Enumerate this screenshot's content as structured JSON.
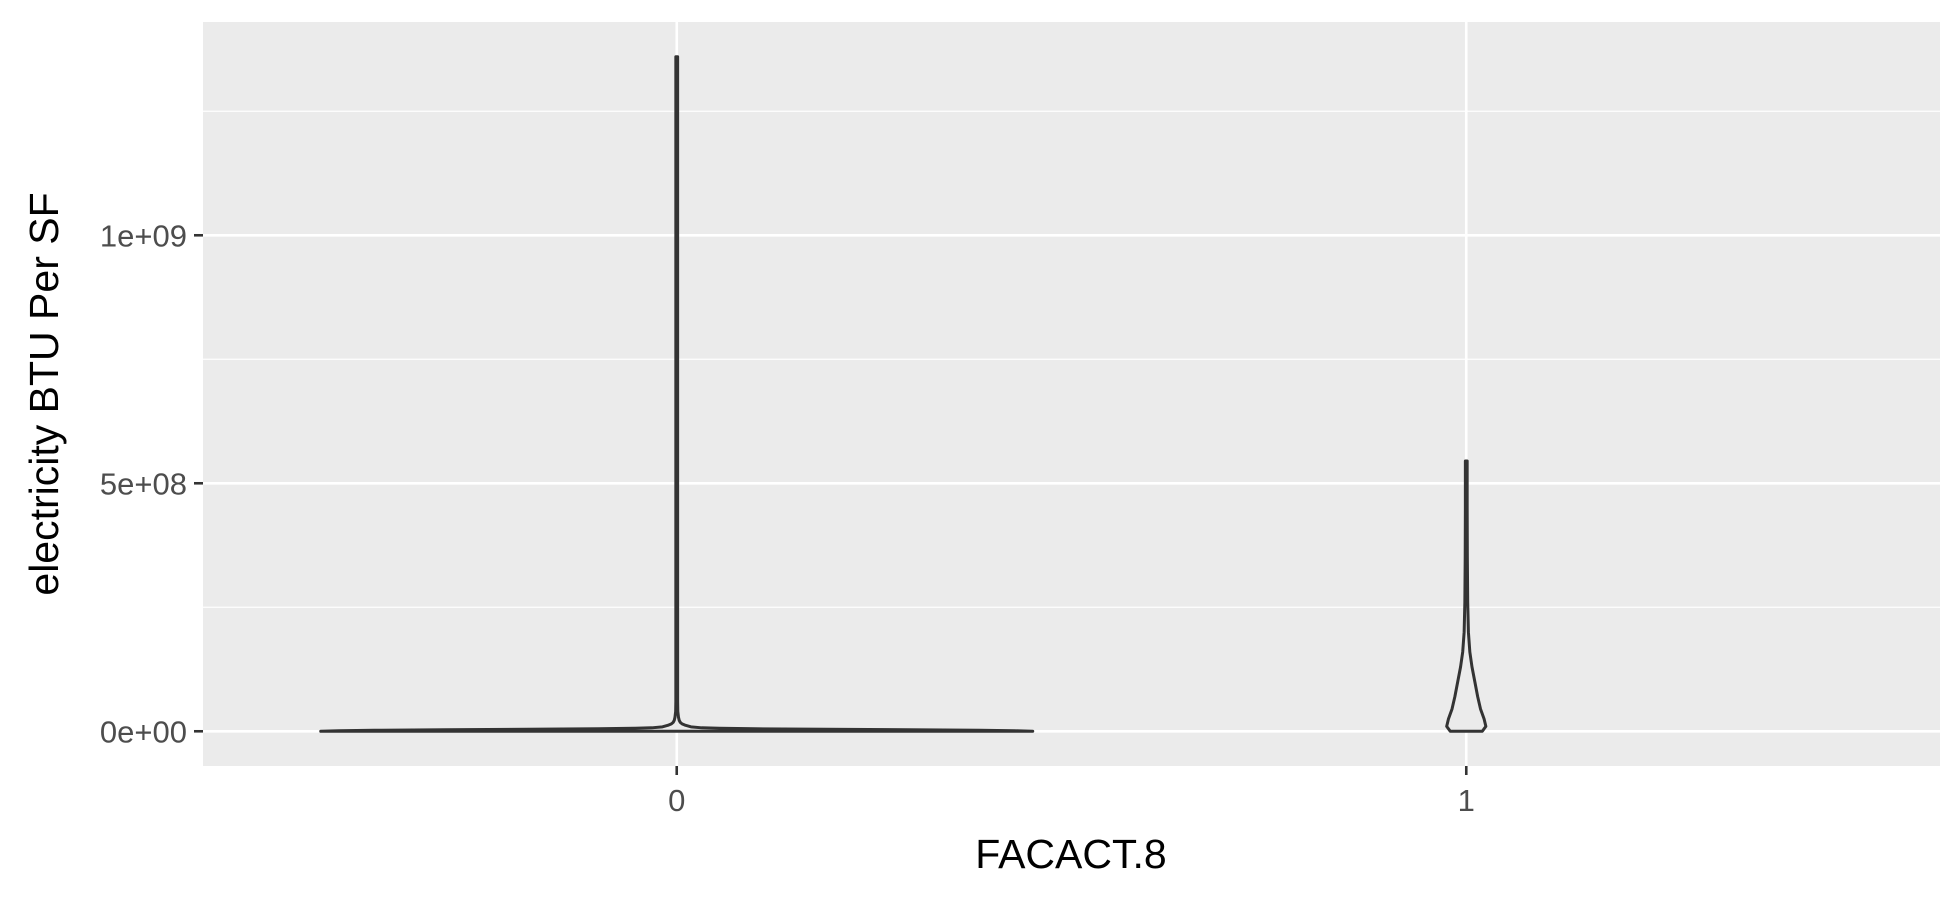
{
  "chart_data": {
    "type": "violin",
    "xlabel": "FACACT.8",
    "ylabel": "electricity BTU Per SF",
    "categories": [
      "0",
      "1"
    ],
    "y_ticks": [
      {
        "value": 0,
        "label": "0e+00"
      },
      {
        "value": 500000000,
        "label": "5e+08"
      },
      {
        "value": 1000000000,
        "label": "1e+09"
      }
    ],
    "ylim": [
      -70000000,
      1430000000
    ],
    "grid": true,
    "colors": {
      "panel": "#ebebeb",
      "grid": "#ffffff",
      "outline": "#333333"
    },
    "series": [
      {
        "category": "0",
        "y_min": 0,
        "y_max": 1360000000,
        "density_profile": [
          [
            0,
            1.0
          ],
          [
            1000000,
            0.95
          ],
          [
            2000000,
            0.85
          ],
          [
            3000000,
            0.65
          ],
          [
            4000000,
            0.42
          ],
          [
            5000000,
            0.22
          ],
          [
            6000000,
            0.12
          ],
          [
            7000000,
            0.07
          ],
          [
            9000000,
            0.04
          ],
          [
            12000000,
            0.025
          ],
          [
            15000000,
            0.015
          ],
          [
            18000000,
            0.01
          ],
          [
            22000000,
            0.007
          ],
          [
            28000000,
            0.005
          ],
          [
            40000000,
            0.003
          ],
          [
            60000000,
            0.002
          ],
          [
            90000000,
            0.0015
          ],
          [
            150000000,
            0.001
          ],
          [
            1360000000,
            0.001
          ]
        ]
      },
      {
        "category": "1",
        "y_min": 0,
        "y_max": 545000000,
        "density_profile": [
          [
            0,
            0.045
          ],
          [
            10000000,
            0.055
          ],
          [
            25000000,
            0.05
          ],
          [
            45000000,
            0.04
          ],
          [
            70000000,
            0.032
          ],
          [
            100000000,
            0.024
          ],
          [
            130000000,
            0.016
          ],
          [
            160000000,
            0.01
          ],
          [
            200000000,
            0.006
          ],
          [
            260000000,
            0.004
          ],
          [
            350000000,
            0.003
          ],
          [
            450000000,
            0.002
          ],
          [
            545000000,
            0.0015
          ]
        ]
      }
    ]
  }
}
